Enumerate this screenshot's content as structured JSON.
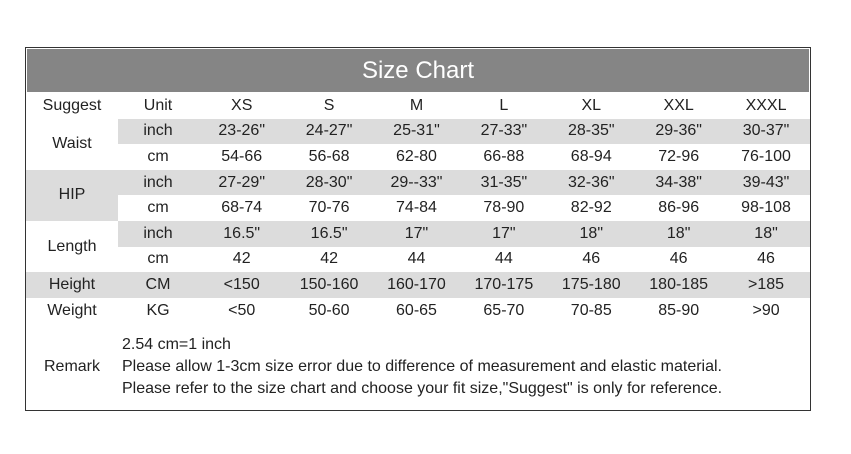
{
  "title": "Size Chart",
  "header": {
    "suggest": "Suggest",
    "unit": "Unit",
    "sizes": [
      "XS",
      "S",
      "M",
      "L",
      "XL",
      "XXL",
      "XXXL"
    ]
  },
  "groups": [
    {
      "label": "Waist",
      "rows": [
        {
          "unit": "inch",
          "values": [
            "23-26\"",
            "24-27\"",
            "25-31\"",
            "27-33\"",
            "28-35\"",
            "29-36\"",
            "30-37\""
          ]
        },
        {
          "unit": "cm",
          "values": [
            "54-66",
            "56-68",
            "62-80",
            "66-88",
            "68-94",
            "72-96",
            "76-100"
          ]
        }
      ]
    },
    {
      "label": "HIP",
      "rows": [
        {
          "unit": "inch",
          "values": [
            "27-29\"",
            "28-30\"",
            "29--33\"",
            "31-35\"",
            "32-36\"",
            "34-38\"",
            "39-43\""
          ]
        },
        {
          "unit": "cm",
          "values": [
            "68-74",
            "70-76",
            "74-84",
            "78-90",
            "82-92",
            "86-96",
            "98-108"
          ]
        }
      ]
    },
    {
      "label": "Length",
      "rows": [
        {
          "unit": "inch",
          "values": [
            "16.5\"",
            "16.5\"",
            "17\"",
            "17\"",
            "18\"",
            "18\"",
            "18\""
          ]
        },
        {
          "unit": "cm",
          "values": [
            "42",
            "42",
            "44",
            "44",
            "46",
            "46",
            "46"
          ]
        }
      ]
    },
    {
      "label": "Height",
      "rows": [
        {
          "unit": "CM",
          "values": [
            "<150",
            "150-160",
            "160-170",
            "170-175",
            "175-180",
            "180-185",
            ">185"
          ]
        }
      ]
    },
    {
      "label": "Weight",
      "rows": [
        {
          "unit": "KG",
          "values": [
            "<50",
            "50-60",
            "60-65",
            "65-70",
            "70-85",
            "85-90",
            ">90"
          ]
        }
      ]
    }
  ],
  "remark": {
    "label": "Remark",
    "lines": [
      "2.54 cm=1 inch",
      "Please allow 1-3cm size error due to difference of measurement and elastic material.",
      "Please refer to the size chart and choose your fit size,\"Suggest\" is only for reference."
    ]
  },
  "colors": {
    "title_bg": "#858585",
    "shade": "#dcdcdc"
  }
}
